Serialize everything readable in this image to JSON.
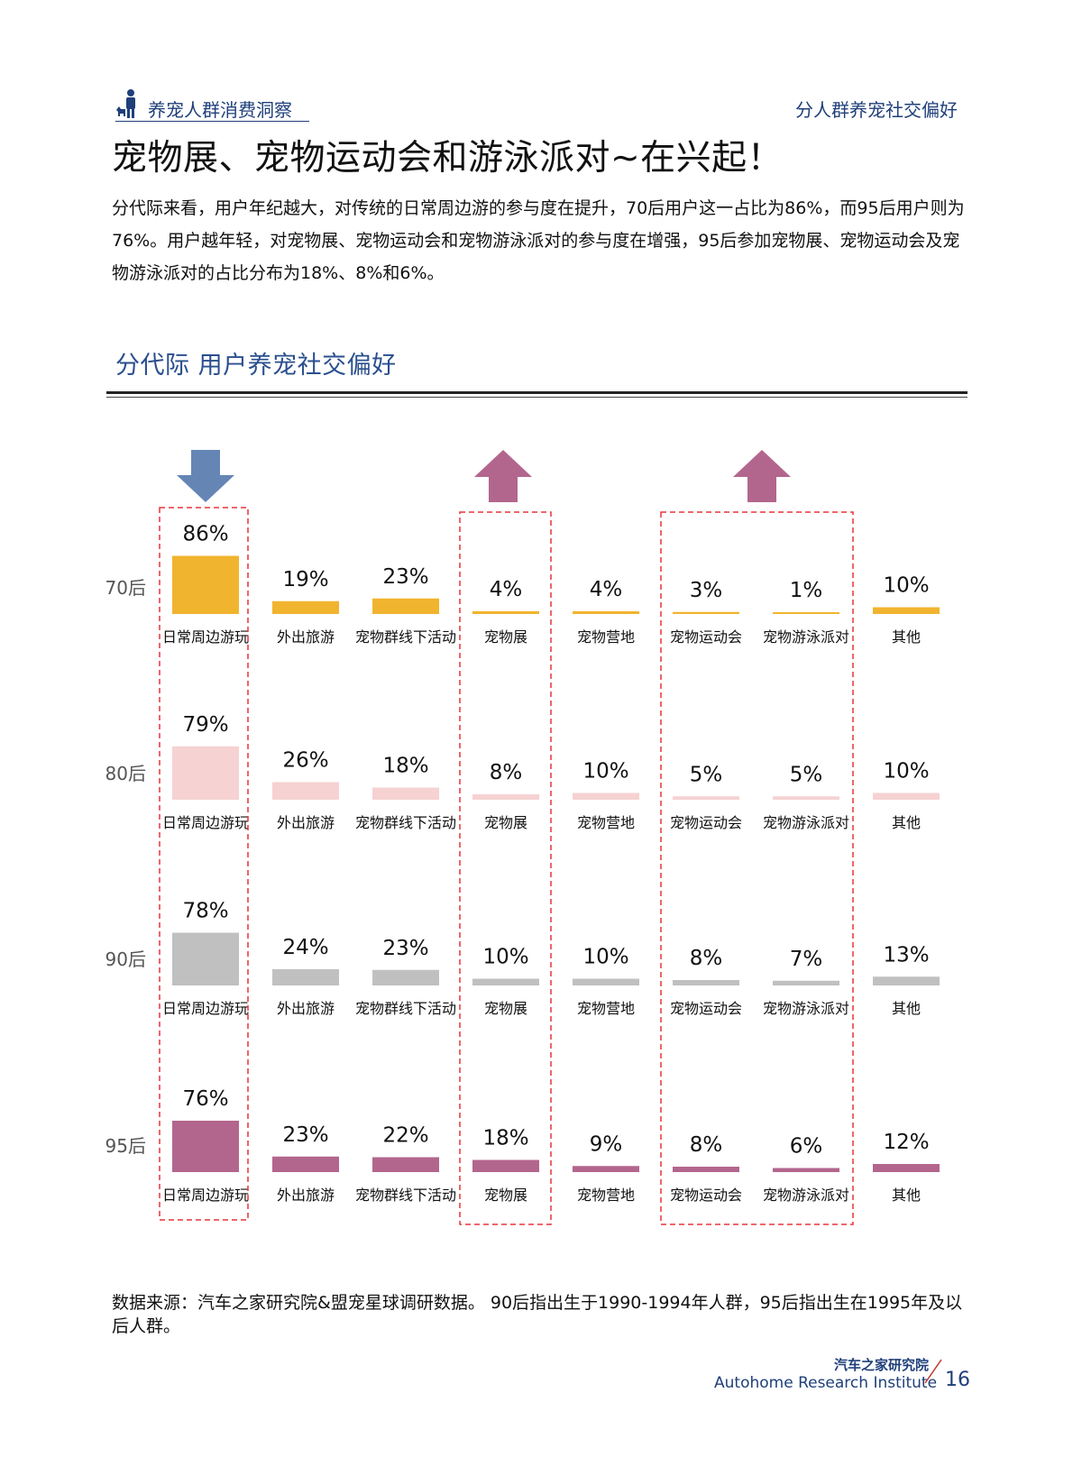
{
  "header": {
    "left_title": "养宠人群消费洞察",
    "right_title": "分人群养宠社交偏好"
  },
  "page_title": "宠物展、宠物运动会和游泳派对~在兴起！",
  "intro_text": "分代际来看，用户年纪越大，对传统的日常周边游的参与度在提升，70后用户这一占比为86%，而95后用户则为76%。用户越年轻，对宠物展、宠物运动会和宠物游泳派对的参与度在增强，95后参加宠物展、宠物运动会及宠物游泳派对的占比分布为18%、8%和6%。",
  "section_title": "分代际  用户养宠社交偏好",
  "colors": {
    "70后": "#f1b42f",
    "80后": "#f6d2d2",
    "90后": "#c0c0c0",
    "95后": "#b3668d",
    "arrow_down": "#6585b5",
    "arrow_up": "#b3668d",
    "highlight_box": "#e8343a"
  },
  "chart_data": {
    "type": "bar",
    "title": "分代际  用户养宠社交偏好",
    "categories": [
      "日常周边游玩",
      "外出旅游",
      "宠物群线下活动",
      "宠物展",
      "宠物营地",
      "宠物运动会",
      "宠物游泳派对",
      "其他"
    ],
    "series": [
      {
        "name": "70后",
        "values": [
          86,
          19,
          23,
          4,
          4,
          3,
          1,
          10
        ],
        "labels": [
          "86%",
          "19%",
          "23%",
          "4%",
          "4%",
          "3%",
          "1%",
          "10%"
        ]
      },
      {
        "name": "80后",
        "values": [
          79,
          26,
          18,
          8,
          10,
          5,
          5,
          10
        ],
        "labels": [
          "79%",
          "26%",
          "18%",
          "8%",
          "10%",
          "5%",
          "5%",
          "10%"
        ]
      },
      {
        "name": "90后",
        "values": [
          78,
          24,
          23,
          10,
          10,
          8,
          7,
          13
        ],
        "labels": [
          "78%",
          "24%",
          "23%",
          "10%",
          "10%",
          "8%",
          "7%",
          "13%"
        ]
      },
      {
        "name": "95后",
        "values": [
          76,
          23,
          22,
          18,
          9,
          8,
          6,
          12
        ],
        "labels": [
          "76%",
          "23%",
          "22%",
          "18%",
          "9%",
          "8%",
          "6%",
          "12%"
        ]
      }
    ],
    "annotations": [
      {
        "category": "日常周边游玩",
        "arrow": "down",
        "highlight": true
      },
      {
        "category": "宠物展",
        "arrow": "up",
        "highlight": true
      },
      {
        "category": "宠物运动会",
        "arrow": "up",
        "highlight": true,
        "group_with": "宠物游泳派对"
      }
    ]
  },
  "source_note": "数据来源：汽车之家研究院&盟宠星球调研数据。 90后指出生于1990-1994年人群，95后指出生在1995年及以后人群。",
  "footer": {
    "org_cn": "汽车之家研究院",
    "org_en": "Autohome Research Institute",
    "page_number": "16"
  }
}
